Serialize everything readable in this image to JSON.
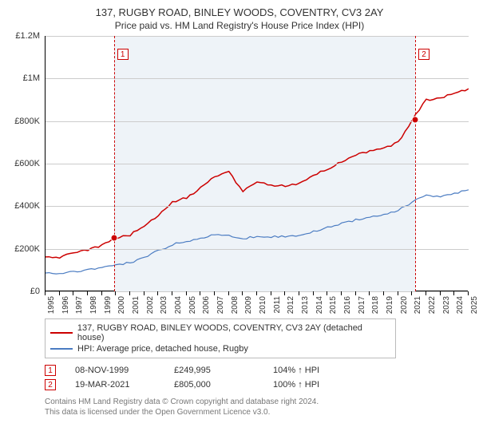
{
  "title": "137, RUGBY ROAD, BINLEY WOODS, COVENTRY, CV3 2AY",
  "subtitle": "Price paid vs. HM Land Registry's House Price Index (HPI)",
  "chart": {
    "type": "line",
    "background_color": "#ffffff",
    "shade_color": "#eef3f8",
    "grid_color": "#cccccc",
    "axis_color": "#000000",
    "ylim": [
      0,
      1200000
    ],
    "ytick_step": 200000,
    "ytick_labels": [
      "£0",
      "£200K",
      "£400K",
      "£600K",
      "£800K",
      "£1M",
      "£1.2M"
    ],
    "years": [
      1995,
      1996,
      1997,
      1998,
      1999,
      2000,
      2001,
      2002,
      2003,
      2004,
      2005,
      2006,
      2007,
      2008,
      2009,
      2010,
      2011,
      2012,
      2013,
      2014,
      2015,
      2016,
      2017,
      2018,
      2019,
      2020,
      2021,
      2022,
      2023,
      2024,
      2025
    ],
    "series": [
      {
        "name": "property",
        "label": "137, RUGBY ROAD, BINLEY WOODS, COVENTRY, CV3 2AY (detached house)",
        "color": "#cc0000",
        "line_width": 1.5,
        "values": [
          165000,
          160000,
          180000,
          195000,
          215000,
          249995,
          265000,
          310000,
          355000,
          420000,
          440000,
          485000,
          540000,
          560000,
          470000,
          510000,
          500000,
          495000,
          505000,
          545000,
          575000,
          610000,
          640000,
          660000,
          670000,
          700000,
          805000,
          900000,
          905000,
          935000,
          950000
        ]
      },
      {
        "name": "hpi",
        "label": "HPI: Average price, detached house, Rugby",
        "color": "#4b7cc2",
        "line_width": 1.2,
        "values": [
          85000,
          85000,
          92000,
          100000,
          110000,
          125000,
          135000,
          160000,
          190000,
          220000,
          235000,
          250000,
          270000,
          265000,
          245000,
          260000,
          255000,
          258000,
          265000,
          280000,
          300000,
          318000,
          335000,
          350000,
          358000,
          380000,
          420000,
          450000,
          448000,
          460000,
          475000
        ]
      }
    ],
    "markers": [
      {
        "id": "1",
        "year": 1999.85,
        "value": 249995,
        "color": "#cc0000"
      },
      {
        "id": "2",
        "year": 2021.21,
        "value": 805000,
        "color": "#cc0000"
      }
    ]
  },
  "legend": {
    "items": [
      {
        "color": "#cc0000",
        "label_path": "chart.series.0.label"
      },
      {
        "color": "#4b7cc2",
        "label_path": "chart.series.1.label"
      }
    ]
  },
  "events": [
    {
      "id": "1",
      "date": "08-NOV-1999",
      "price": "£249,995",
      "pct": "104% ↑ HPI"
    },
    {
      "id": "2",
      "date": "19-MAR-2021",
      "price": "£805,000",
      "pct": "100% ↑ HPI"
    }
  ],
  "footer": {
    "line1": "Contains HM Land Registry data © Crown copyright and database right 2024.",
    "line2": "This data is licensed under the Open Government Licence v3.0."
  }
}
